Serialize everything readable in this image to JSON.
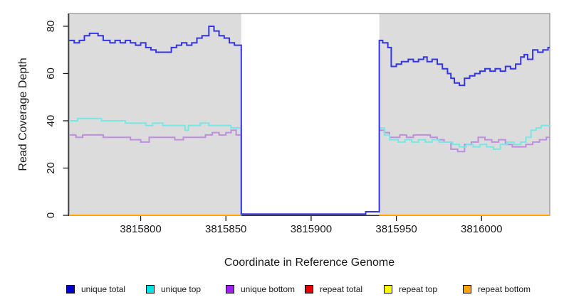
{
  "chart_data": {
    "type": "line",
    "step": true,
    "title": "",
    "xlabel": "Coordinate in Reference Genome",
    "ylabel": "Read Coverage Depth",
    "xlim": [
      3815758,
      3816040
    ],
    "ylim": [
      0,
      85.4
    ],
    "x_ticks": [
      3815800,
      3815850,
      3815900,
      3815950,
      3816000
    ],
    "y_ticks": [
      0,
      20,
      40,
      60,
      80
    ],
    "grid": false,
    "legend_position": "bottom",
    "panel_bg": "#dcdcdc",
    "panel_border": "#8f8f8f",
    "axis_color": "#1a1a1a",
    "gap_region": [
      3815859,
      3815940
    ],
    "coverage_regions": [
      [
        3815758,
        3815859
      ],
      [
        3815940,
        3816040
      ]
    ],
    "draw_order": [
      3,
      4,
      5,
      2,
      1,
      0
    ],
    "series": [
      {
        "name": "unique total",
        "line_color": "#3434e8",
        "swatch_color": "#0000cd",
        "segments": [
          [
            [
              3815758,
              74
            ],
            [
              3815761,
              73
            ],
            [
              3815764,
              74
            ],
            [
              3815767,
              76
            ],
            [
              3815770,
              77
            ],
            [
              3815775,
              76
            ],
            [
              3815778,
              74
            ],
            [
              3815782,
              73
            ],
            [
              3815785,
              74
            ],
            [
              3815788,
              73
            ],
            [
              3815791,
              74
            ],
            [
              3815794,
              73
            ],
            [
              3815797,
              72
            ],
            [
              3815800,
              73
            ],
            [
              3815803,
              71
            ],
            [
              3815806,
              70
            ],
            [
              3815809,
              69
            ],
            [
              3815815,
              69
            ],
            [
              3815818,
              71
            ],
            [
              3815821,
              72
            ],
            [
              3815824,
              73
            ],
            [
              3815827,
              72
            ],
            [
              3815830,
              73
            ],
            [
              3815833,
              75
            ],
            [
              3815836,
              76
            ],
            [
              3815840,
              80
            ],
            [
              3815843,
              78
            ],
            [
              3815846,
              76
            ],
            [
              3815849,
              75
            ],
            [
              3815852,
              73
            ],
            [
              3815855,
              72
            ],
            [
              3815859,
              0.5
            ],
            [
              3815932,
              1.5
            ],
            [
              3815940,
              74
            ],
            [
              3815942,
              73
            ],
            [
              3815945,
              71
            ],
            [
              3815947,
              63
            ],
            [
              3815950,
              64
            ],
            [
              3815953,
              65
            ],
            [
              3815957,
              66
            ],
            [
              3815960,
              65
            ],
            [
              3815963,
              66
            ],
            [
              3815966,
              67
            ],
            [
              3815968,
              65
            ],
            [
              3815971,
              66
            ],
            [
              3815974,
              64
            ],
            [
              3815977,
              62
            ],
            [
              3815980,
              60
            ],
            [
              3815982,
              58
            ],
            [
              3815984,
              56
            ],
            [
              3815987,
              55
            ],
            [
              3815990,
              58
            ],
            [
              3815993,
              59
            ],
            [
              3815996,
              60
            ],
            [
              3815999,
              61
            ],
            [
              3816002,
              62
            ],
            [
              3816005,
              61
            ],
            [
              3816008,
              62
            ],
            [
              3816011,
              61
            ],
            [
              3816014,
              63
            ],
            [
              3816017,
              62
            ],
            [
              3816020,
              64
            ],
            [
              3816023,
              67
            ],
            [
              3816025,
              68
            ],
            [
              3816027,
              66
            ],
            [
              3816030,
              70
            ],
            [
              3816033,
              69
            ],
            [
              3816036,
              70
            ],
            [
              3816039,
              71
            ],
            [
              3816040,
              71
            ]
          ]
        ]
      },
      {
        "name": "unique top",
        "line_color": "#79e7e3",
        "swatch_color": "#00e5e5",
        "segments": [
          [
            [
              3815758,
              40
            ],
            [
              3815763,
              41
            ],
            [
              3815774,
              41
            ],
            [
              3815777,
              40
            ],
            [
              3815787,
              40
            ],
            [
              3815791,
              39
            ],
            [
              3815799,
              39
            ],
            [
              3815803,
              38
            ],
            [
              3815807,
              39
            ],
            [
              3815813,
              38
            ],
            [
              3815826,
              36
            ],
            [
              3815828,
              38
            ],
            [
              3815835,
              39
            ],
            [
              3815840,
              38
            ],
            [
              3815849,
              38
            ],
            [
              3815853,
              37
            ],
            [
              3815859,
              0
            ]
          ],
          [
            [
              3815940,
              37
            ],
            [
              3815943,
              34
            ],
            [
              3815946,
              32
            ],
            [
              3815951,
              31
            ],
            [
              3815955,
              32
            ],
            [
              3815959,
              31
            ],
            [
              3815963,
              32
            ],
            [
              3815967,
              31
            ],
            [
              3815971,
              32
            ],
            [
              3815975,
              31
            ],
            [
              3815983,
              30
            ],
            [
              3815987,
              29
            ],
            [
              3815991,
              30
            ],
            [
              3815995,
              29
            ],
            [
              3815999,
              30
            ],
            [
              3816003,
              29
            ],
            [
              3816007,
              28
            ],
            [
              3816011,
              30
            ],
            [
              3816015,
              31
            ],
            [
              3816019,
              30
            ],
            [
              3816023,
              31
            ],
            [
              3816026,
              33
            ],
            [
              3816029,
              36
            ],
            [
              3816032,
              37
            ],
            [
              3816035,
              38
            ],
            [
              3816040,
              38
            ]
          ]
        ]
      },
      {
        "name": "unique bottom",
        "line_color": "#bd8fdd",
        "swatch_color": "#a020f0",
        "segments": [
          [
            [
              3815758,
              34
            ],
            [
              3815762,
              33
            ],
            [
              3815766,
              34
            ],
            [
              3815772,
              34
            ],
            [
              3815778,
              33
            ],
            [
              3815790,
              33
            ],
            [
              3815794,
              32
            ],
            [
              3815800,
              31
            ],
            [
              3815805,
              33
            ],
            [
              3815815,
              33
            ],
            [
              3815820,
              32
            ],
            [
              3815825,
              33
            ],
            [
              3815833,
              33
            ],
            [
              3815838,
              34
            ],
            [
              3815842,
              35
            ],
            [
              3815846,
              34
            ],
            [
              3815850,
              35
            ],
            [
              3815853,
              36
            ],
            [
              3815856,
              34
            ],
            [
              3815859,
              0
            ]
          ],
          [
            [
              3815940,
              36
            ],
            [
              3815943,
              35
            ],
            [
              3815946,
              33
            ],
            [
              3815952,
              34
            ],
            [
              3815956,
              33
            ],
            [
              3815960,
              34
            ],
            [
              3815966,
              34
            ],
            [
              3815970,
              33
            ],
            [
              3815974,
              32
            ],
            [
              3815978,
              31
            ],
            [
              3815982,
              28
            ],
            [
              3815986,
              27
            ],
            [
              3815990,
              30
            ],
            [
              3815994,
              31
            ],
            [
              3815998,
              33
            ],
            [
              3816002,
              32
            ],
            [
              3816006,
              31
            ],
            [
              3816010,
              32
            ],
            [
              3816014,
              30
            ],
            [
              3816018,
              29
            ],
            [
              3816026,
              30
            ],
            [
              3816030,
              31
            ],
            [
              3816034,
              32
            ],
            [
              3816038,
              33
            ],
            [
              3816040,
              33
            ]
          ]
        ]
      },
      {
        "name": "repeat total",
        "line_color": "#e60000",
        "swatch_color": "#e60000",
        "segments": [
          [
            [
              3815758,
              0
            ],
            [
              3815859,
              0
            ]
          ],
          [
            [
              3815940,
              0
            ],
            [
              3816040,
              0
            ]
          ]
        ]
      },
      {
        "name": "repeat top",
        "line_color": "#ffff00",
        "swatch_color": "#ffff00",
        "segments": [
          [
            [
              3815758,
              0
            ],
            [
              3815859,
              0
            ]
          ],
          [
            [
              3815940,
              0
            ],
            [
              3816040,
              0
            ]
          ]
        ]
      },
      {
        "name": "repeat bottom",
        "line_color": "#ffa500",
        "swatch_color": "#ffa500",
        "segments": [
          [
            [
              3815758,
              0
            ],
            [
              3815859,
              0
            ]
          ],
          [
            [
              3815940,
              0
            ],
            [
              3816040,
              0
            ]
          ]
        ]
      }
    ]
  }
}
